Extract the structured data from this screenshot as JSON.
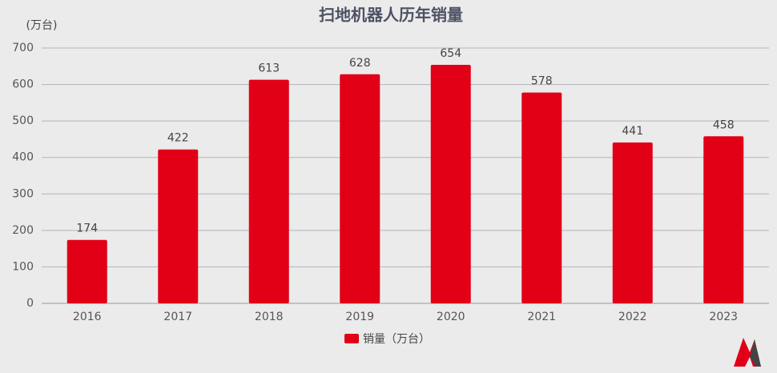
{
  "chart_data": {
    "type": "bar",
    "title": "扫地机器人历年销量",
    "y_label": "(万台)",
    "categories": [
      "2016",
      "2017",
      "2018",
      "2019",
      "2020",
      "2021",
      "2022",
      "2023"
    ],
    "series": [
      {
        "name": "销量（万台）",
        "color": "#e10016",
        "values": [
          174,
          422,
          613,
          628,
          654,
          578,
          441,
          458
        ]
      }
    ],
    "ylim": [
      0,
      700
    ],
    "yticks": [
      0,
      100,
      200,
      300,
      400,
      500,
      600,
      700
    ],
    "grid": true,
    "legend": "bottom"
  }
}
